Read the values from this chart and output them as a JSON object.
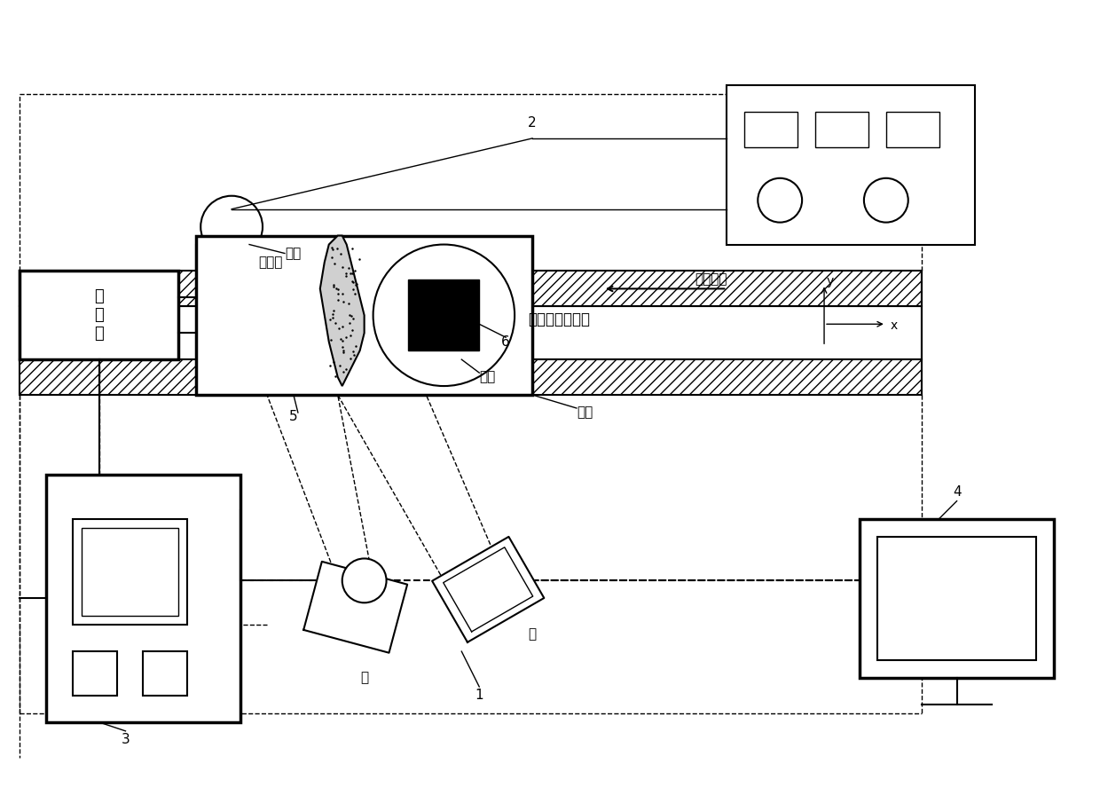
{
  "bg_color": "#ffffff",
  "line_color": "#000000",
  "hatch_color": "#000000",
  "text_color": "#000000",
  "fig_width": 12.4,
  "fig_height": 9.05,
  "labels": {
    "dong_li_yi": "动\n力\n仪",
    "luo_xuan_jiang": "螺旋桨",
    "kong_pao": "空泡水筒试验段",
    "liu_dong": "流动方向",
    "ding_chuang": "顶窗",
    "ce_chuang": "侧窗",
    "tong_bi": "筒壁",
    "zuo": "左",
    "you": "右",
    "num1": "1",
    "num2": "2",
    "num3": "3",
    "num4": "4",
    "num5": "5",
    "num6": "6",
    "x_label": "x",
    "y_label": "y"
  }
}
